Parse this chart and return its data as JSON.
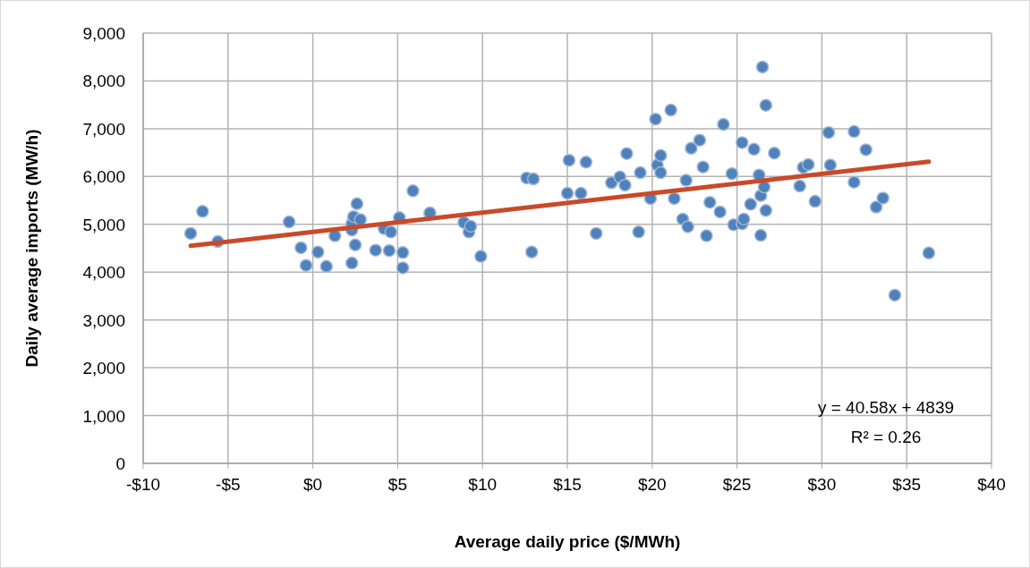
{
  "chart_data": {
    "type": "scatter",
    "xlabel": "Average daily price ($/MWh)",
    "ylabel": "Daily average imports (MW/h)",
    "xlim": [
      -10,
      40
    ],
    "xticks": [
      {
        "value": -10,
        "label": "-$10"
      },
      {
        "value": -5,
        "label": "-$5"
      },
      {
        "value": 0,
        "label": "$0"
      },
      {
        "value": 5,
        "label": "$5"
      },
      {
        "value": 10,
        "label": "$10"
      },
      {
        "value": 15,
        "label": "$15"
      },
      {
        "value": 20,
        "label": "$20"
      },
      {
        "value": 25,
        "label": "$25"
      },
      {
        "value": 30,
        "label": "$30"
      },
      {
        "value": 35,
        "label": "$35"
      },
      {
        "value": 40,
        "label": "$40"
      }
    ],
    "ylim": [
      0,
      9000
    ],
    "yticks": [
      {
        "value": 0,
        "label": "0"
      },
      {
        "value": 1000,
        "label": "1,000"
      },
      {
        "value": 2000,
        "label": "2,000"
      },
      {
        "value": 3000,
        "label": "3,000"
      },
      {
        "value": 4000,
        "label": "4,000"
      },
      {
        "value": 5000,
        "label": "5,000"
      },
      {
        "value": 6000,
        "label": "6,000"
      },
      {
        "value": 7000,
        "label": "7,000"
      },
      {
        "value": 8000,
        "label": "8,000"
      },
      {
        "value": 9000,
        "label": "9,000"
      }
    ],
    "grid": true,
    "series": [
      {
        "marker": "circle",
        "color": "#4f81bd",
        "x": [
          -7.2,
          -6.5,
          -5.6,
          -1.4,
          -0.7,
          -0.4,
          0.3,
          0.8,
          1.3,
          2.3,
          2.3,
          2.3,
          2.4,
          2.5,
          2.6,
          2.8,
          3.7,
          4.2,
          4.5,
          4.6,
          5.1,
          5.3,
          5.3,
          5.9,
          6.9,
          6.9,
          8.9,
          9.2,
          9.3,
          9.9,
          12.6,
          12.9,
          13.0,
          15.0,
          15.1,
          15.8,
          16.1,
          16.7,
          17.6,
          18.1,
          18.4,
          18.5,
          19.2,
          19.3,
          19.9,
          20.2,
          20.3,
          20.5,
          20.5,
          21.1,
          21.3,
          21.8,
          22.0,
          22.1,
          22.3,
          22.8,
          23.0,
          23.2,
          23.4,
          24.0,
          24.2,
          24.7,
          24.8,
          25.3,
          25.3,
          25.4,
          25.8,
          26.0,
          26.3,
          26.5,
          26.4,
          26.4,
          26.6,
          26.7,
          26.7,
          27.2,
          28.7,
          28.9,
          29.2,
          29.6,
          30.4,
          30.5,
          31.9,
          31.9,
          32.6,
          33.2,
          33.6,
          34.3,
          36.3
        ],
        "values": [
          4810,
          5270,
          4640,
          5050,
          4510,
          4140,
          4420,
          4120,
          4760,
          4190,
          4880,
          5010,
          5160,
          4570,
          5430,
          5100,
          4460,
          4910,
          4450,
          4840,
          5140,
          4410,
          4090,
          5700,
          5220,
          5240,
          5040,
          4840,
          4960,
          4330,
          5970,
          4420,
          5950,
          5650,
          6340,
          5650,
          6300,
          4810,
          5870,
          5990,
          5820,
          6480,
          4840,
          6080,
          5540,
          7200,
          6240,
          6440,
          6080,
          7390,
          5540,
          5110,
          5920,
          4950,
          6590,
          6760,
          6200,
          4760,
          5460,
          5260,
          7090,
          6060,
          4990,
          6710,
          5010,
          5110,
          5420,
          6570,
          6030,
          8290,
          5600,
          4770,
          5780,
          7490,
          5290,
          6490,
          5800,
          6190,
          6250,
          5480,
          6920,
          6240,
          5880,
          6940,
          6560,
          5360,
          5550,
          3520,
          4400
        ]
      },
      {
        "type": "line",
        "color": "#c9492a",
        "x": [
          -7.2,
          36.3
        ],
        "values": [
          4550,
          6310
        ]
      }
    ],
    "annotations": [
      "y = 40.58x + 4839",
      "R² = 0.26"
    ]
  }
}
